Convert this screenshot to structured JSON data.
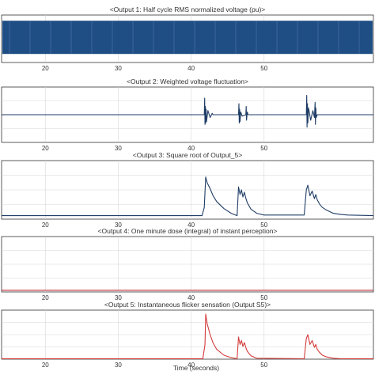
{
  "figure": {
    "xlabel": "Time (seconds)"
  },
  "chart_data": [
    {
      "type": "line",
      "title": "<Output 1: Half cycle RMS normalized voltage (pu)>",
      "color": "#1f4e85",
      "band": true,
      "xlim": [
        14,
        65
      ],
      "xticks": [
        20,
        30,
        40,
        50
      ],
      "ylim": [
        0,
        1
      ],
      "series": [
        {
          "x": [
            14,
            65
          ],
          "y": [
            0.55,
            0.55
          ]
        }
      ]
    },
    {
      "type": "line",
      "title": "<Output 2: Weighted voltage fluctuation>",
      "color": "#1f3d66",
      "xlim": [
        14,
        65
      ],
      "xticks": [
        20,
        30,
        40,
        50
      ],
      "ylim": [
        -1,
        1
      ],
      "series": [
        {
          "x": [
            14,
            41.8,
            41.85,
            41.9,
            41.95,
            42.0,
            42.05,
            42.1,
            42.3,
            42.6,
            42.9,
            43.0,
            46.5,
            46.55,
            46.6,
            46.65,
            46.7,
            46.8,
            47.0,
            47.5,
            47.55,
            47.6,
            47.7,
            47.8,
            55.8,
            55.85,
            55.9,
            55.95,
            56.0,
            56.1,
            56.4,
            56.7,
            56.9,
            57.0,
            57.05,
            57.1,
            57.15,
            57.3,
            65
          ],
          "y": [
            0,
            0,
            0.6,
            -0.35,
            0.3,
            -0.3,
            0.2,
            -0.25,
            0.15,
            -0.1,
            0.05,
            0,
            0,
            0.4,
            -0.3,
            0.2,
            -0.25,
            0.1,
            -0.05,
            0,
            0.3,
            -0.2,
            0.1,
            0,
            0,
            0.7,
            -0.45,
            0.4,
            -0.3,
            0.25,
            -0.2,
            0.15,
            -0.1,
            0.45,
            -0.35,
            0.25,
            -0.1,
            0,
            0
          ]
        }
      ]
    },
    {
      "type": "line",
      "title": "<Output 3: Square root of Output_5>",
      "color": "#1f3d66",
      "xlim": [
        14,
        65
      ],
      "xticks": [
        20,
        30,
        40,
        50
      ],
      "ylim": [
        0,
        1
      ],
      "series": [
        {
          "x": [
            14,
            41.5,
            41.8,
            42.0,
            42.2,
            42.6,
            43.0,
            43.5,
            44.5,
            45.5,
            46.3,
            46.5,
            46.7,
            46.9,
            47.1,
            47.3,
            47.5,
            47.7,
            48.2,
            49.0,
            50.0,
            55.5,
            55.8,
            56.0,
            56.3,
            56.6,
            56.9,
            57.1,
            57.3,
            57.6,
            58.0,
            58.5,
            59.5,
            60.5,
            61.5,
            65
          ],
          "y": [
            0.06,
            0.06,
            0.2,
            0.72,
            0.62,
            0.52,
            0.4,
            0.3,
            0.18,
            0.1,
            0.06,
            0.55,
            0.42,
            0.5,
            0.38,
            0.46,
            0.36,
            0.28,
            0.17,
            0.1,
            0.07,
            0.07,
            0.5,
            0.58,
            0.4,
            0.48,
            0.35,
            0.42,
            0.33,
            0.26,
            0.2,
            0.16,
            0.1,
            0.08,
            0.07,
            0.06
          ]
        }
      ]
    },
    {
      "type": "line",
      "title": "<Output 4: One minute dose (integral) of instant perception>",
      "color": "#c0303a",
      "xlim": [
        14,
        65
      ],
      "xticks": [
        20,
        30,
        40,
        50
      ],
      "ylim": [
        0,
        1
      ],
      "series": [
        {
          "x": [
            14,
            65
          ],
          "y": [
            0.03,
            0.03
          ]
        }
      ]
    },
    {
      "type": "line",
      "title": "<Output 5: Instantaneous flicker sensation (Output S5)>",
      "color": "#d43a3a",
      "xlim": [
        14,
        65
      ],
      "xticks": [
        20,
        30,
        40,
        50
      ],
      "ylim": [
        0,
        1
      ],
      "series": [
        {
          "x": [
            14,
            41.6,
            41.9,
            42.0,
            42.2,
            42.6,
            43.0,
            43.5,
            44.5,
            45.5,
            46.3,
            46.5,
            46.7,
            46.9,
            47.1,
            47.3,
            47.5,
            47.7,
            48.2,
            49.0,
            55.5,
            55.8,
            56.0,
            56.3,
            56.6,
            56.9,
            57.1,
            57.3,
            57.6,
            58.0,
            58.5,
            59.5,
            60.5,
            65
          ],
          "y": [
            0.01,
            0.01,
            0.3,
            0.92,
            0.72,
            0.5,
            0.33,
            0.2,
            0.08,
            0.03,
            0.01,
            0.45,
            0.3,
            0.38,
            0.26,
            0.34,
            0.24,
            0.16,
            0.07,
            0.02,
            0.01,
            0.42,
            0.5,
            0.3,
            0.38,
            0.24,
            0.3,
            0.2,
            0.14,
            0.08,
            0.05,
            0.02,
            0.01,
            0.01
          ]
        }
      ]
    }
  ]
}
